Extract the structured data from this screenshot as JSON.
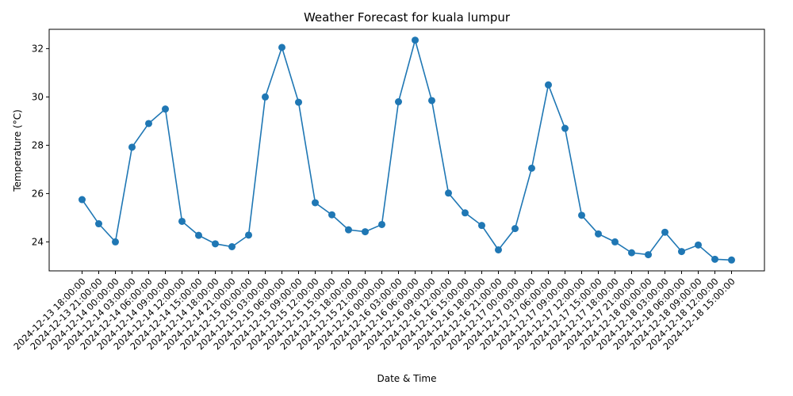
{
  "chart_data": {
    "type": "line",
    "title": "Weather Forecast for kuala lumpur",
    "xlabel": "Date & Time",
    "ylabel": "Temperature (°C)",
    "ylim": [
      22.8,
      32.8
    ],
    "yticks": [
      "24",
      "26",
      "28",
      "30",
      "32"
    ],
    "grid": false,
    "colors": {
      "line": "#1f77b4"
    },
    "x": [
      "2024-12-13 18:00:00",
      "2024-12-13 21:00:00",
      "2024-12-14 00:00:00",
      "2024-12-14 03:00:00",
      "2024-12-14 06:00:00",
      "2024-12-14 09:00:00",
      "2024-12-14 12:00:00",
      "2024-12-14 15:00:00",
      "2024-12-14 18:00:00",
      "2024-12-14 21:00:00",
      "2024-12-15 00:00:00",
      "2024-12-15 03:00:00",
      "2024-12-15 06:00:00",
      "2024-12-15 09:00:00",
      "2024-12-15 12:00:00",
      "2024-12-15 15:00:00",
      "2024-12-15 18:00:00",
      "2024-12-15 21:00:00",
      "2024-12-16 00:00:00",
      "2024-12-16 03:00:00",
      "2024-12-16 06:00:00",
      "2024-12-16 09:00:00",
      "2024-12-16 12:00:00",
      "2024-12-16 15:00:00",
      "2024-12-16 18:00:00",
      "2024-12-16 21:00:00",
      "2024-12-17 00:00:00",
      "2024-12-17 03:00:00",
      "2024-12-17 06:00:00",
      "2024-12-17 09:00:00",
      "2024-12-17 12:00:00",
      "2024-12-17 15:00:00",
      "2024-12-17 18:00:00",
      "2024-12-17 21:00:00",
      "2024-12-18 00:00:00",
      "2024-12-18 03:00:00",
      "2024-12-18 06:00:00",
      "2024-12-18 09:00:00",
      "2024-12-18 12:00:00",
      "2024-12-18 15:00:00"
    ],
    "values": [
      25.75,
      24.75,
      24.0,
      27.92,
      28.9,
      29.5,
      24.85,
      24.27,
      23.92,
      23.8,
      24.28,
      30.0,
      32.05,
      29.78,
      25.62,
      25.12,
      24.5,
      24.42,
      24.72,
      29.8,
      32.35,
      29.85,
      26.02,
      25.2,
      24.68,
      23.67,
      24.55,
      27.05,
      30.5,
      28.7,
      25.1,
      24.33,
      24.0,
      23.55,
      23.47,
      24.4,
      23.6,
      23.87,
      23.28,
      23.25
    ]
  }
}
